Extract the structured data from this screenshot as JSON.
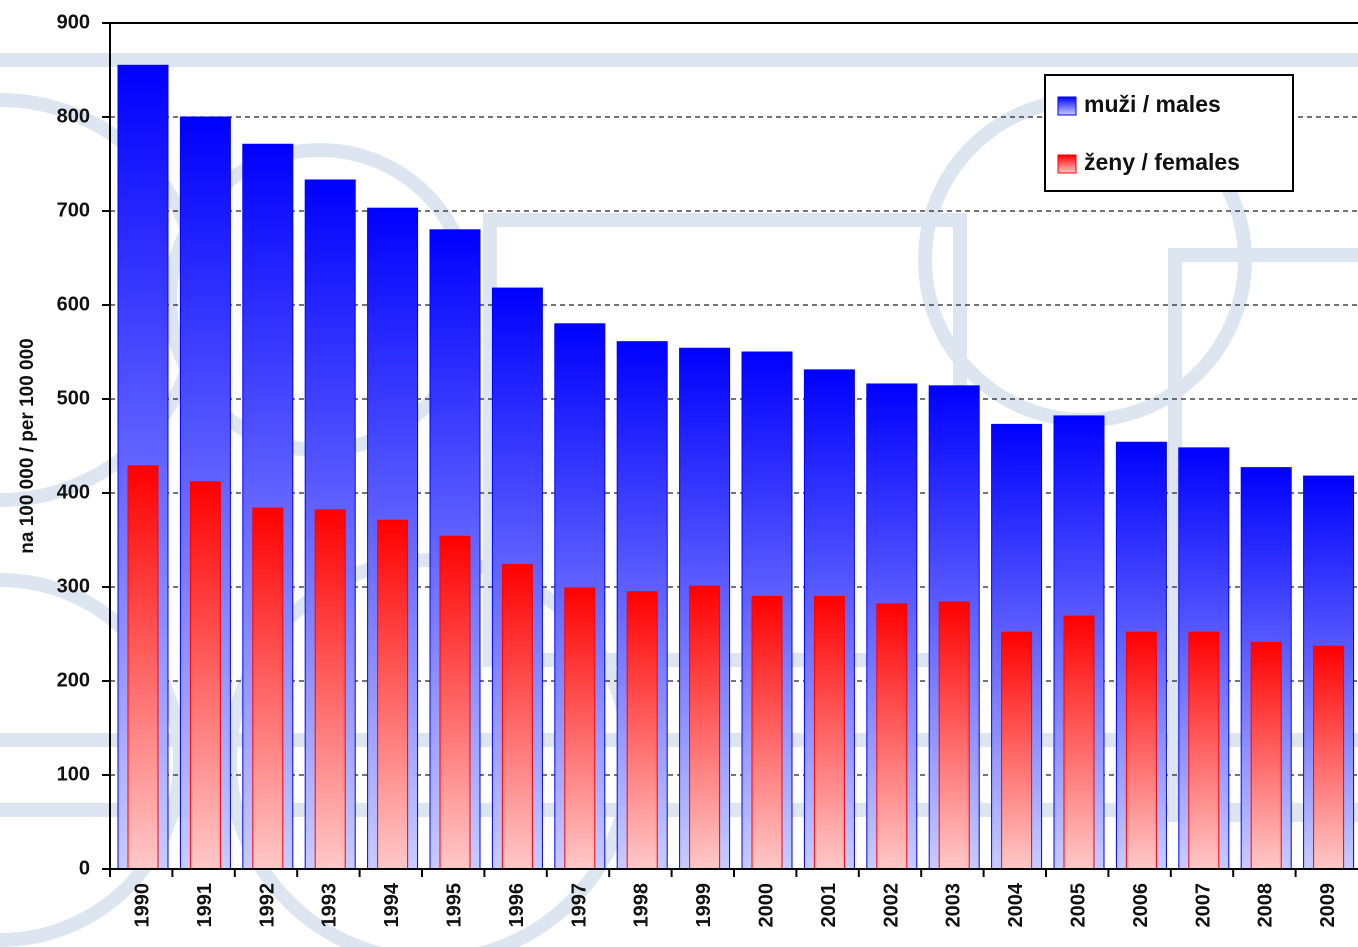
{
  "chart_data": {
    "type": "bar",
    "y_label": "na 100 000 / per 100 000",
    "categories": [
      "1990",
      "1991",
      "1992",
      "1993",
      "1994",
      "1995",
      "1996",
      "1997",
      "1998",
      "1999",
      "2000",
      "2001",
      "2002",
      "2003",
      "2004",
      "2005",
      "2006",
      "2007",
      "2008",
      "2009"
    ],
    "series": [
      {
        "name": "muži / males",
        "color": "#0000ff",
        "values": [
          855,
          800,
          771,
          733,
          703,
          680,
          618,
          580,
          561,
          554,
          550,
          531,
          516,
          514,
          473,
          482,
          454,
          448,
          427,
          418
        ]
      },
      {
        "name": "ženy / females",
        "color": "#ff0000",
        "values": [
          429,
          412,
          384,
          382,
          371,
          354,
          324,
          299,
          295,
          301,
          290,
          290,
          282,
          284,
          252,
          269,
          252,
          252,
          241,
          237
        ]
      }
    ],
    "ylim": [
      0,
      900
    ],
    "yticks": [
      0,
      100,
      200,
      300,
      400,
      500,
      600,
      700,
      800,
      900
    ],
    "grid": true,
    "legend": "top-right"
  }
}
